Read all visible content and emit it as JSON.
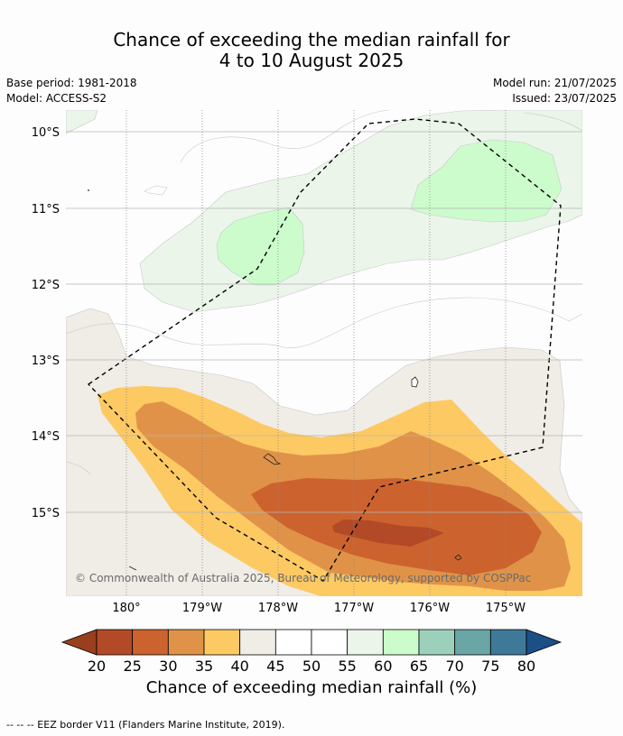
{
  "title": {
    "line1": "Chance of exceeding the median rainfall for",
    "line2": "4 to 10 August 2025"
  },
  "meta": {
    "base_period": "Base period: 1981-2018",
    "model": "Model: ACCESS-S2",
    "model_run": "Model run: 21/07/2025",
    "issued": "Issued: 23/07/2025"
  },
  "map": {
    "lat_labels": [
      "10°S",
      "11°S",
      "12°S",
      "13°S",
      "14°S",
      "15°S"
    ],
    "lon_labels": [
      "180°",
      "179°W",
      "178°W",
      "177°W",
      "176°W",
      "175°W"
    ],
    "copyright": "© Commonwealth of Australia 2025, Bureau of Meteorology, supported by COSPPac",
    "eez_color": "#000000"
  },
  "colorbar": {
    "labels": [
      "20",
      "25",
      "30",
      "35",
      "40",
      "45",
      "50",
      "55",
      "60",
      "65",
      "70",
      "75",
      "80"
    ],
    "low_extension_color": "#9a3f1e",
    "high_extension_color": "#1c4f86",
    "colors": [
      "#b24a28",
      "#cc632e",
      "#e09348",
      "#fdc963",
      "#f0ece6",
      "#ffffff",
      "#ffffff",
      "#ebf5ea",
      "#ccfccc",
      "#9dd0ba",
      "#6aa6a6",
      "#3f7998"
    ],
    "title": "Chance of exceeding median rainfall (%)"
  },
  "footnote": "--  --  -- EEZ border V11 (Flanders Marine Institute, 2019)."
}
